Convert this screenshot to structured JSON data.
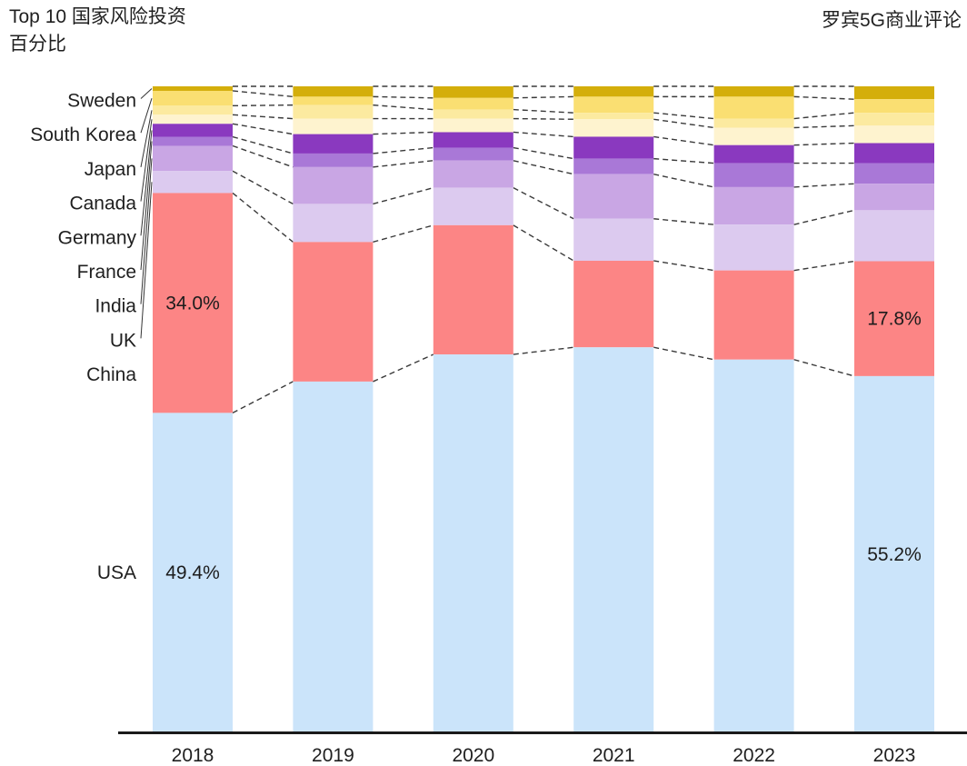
{
  "header": {
    "title_line1": "Top 10 国家风险投资",
    "title_line2": "百分比",
    "source": "罗宾5G商业评论"
  },
  "chart_data": {
    "type": "bar",
    "subtype": "100-percent-stacked-column",
    "title": "Top 10 国家风险投资 百分比",
    "source_label": "罗宾5G商业评论",
    "unit": "%",
    "categories": [
      "2018",
      "2019",
      "2020",
      "2021",
      "2022",
      "2023"
    ],
    "stack_order_top_to_bottom": [
      "Sweden",
      "South Korea",
      "Japan",
      "Canada",
      "Germany",
      "France",
      "India",
      "UK",
      "China",
      "USA"
    ],
    "series": [
      {
        "name": "Sweden",
        "color": "#D4AE0B",
        "values": [
          0.7,
          1.6,
          1.8,
          1.6,
          1.6,
          2.0
        ]
      },
      {
        "name": "South Korea",
        "color": "#FADF72",
        "values": [
          2.3,
          1.3,
          1.8,
          2.5,
          3.4,
          2.1
        ]
      },
      {
        "name": "Japan",
        "color": "#FCEAA0",
        "values": [
          1.4,
          2.1,
          1.4,
          1.0,
          1.4,
          2.0
        ]
      },
      {
        "name": "Canada",
        "color": "#FEF3CF",
        "values": [
          1.4,
          2.4,
          2.1,
          2.7,
          2.7,
          2.7
        ]
      },
      {
        "name": "Germany",
        "color": "#8A39BF",
        "values": [
          2.0,
          3.0,
          2.4,
          3.4,
          2.8,
          3.1
        ]
      },
      {
        "name": "France",
        "color": "#A978D7",
        "values": [
          1.4,
          2.1,
          2.0,
          2.4,
          3.7,
          3.2
        ]
      },
      {
        "name": "India",
        "color": "#C9A6E4",
        "values": [
          3.9,
          5.7,
          4.2,
          6.9,
          5.8,
          4.1
        ]
      },
      {
        "name": "UK",
        "color": "#DCCAEF",
        "values": [
          3.4,
          5.9,
          5.8,
          6.5,
          7.1,
          7.9
        ]
      },
      {
        "name": "China",
        "color": "#FC8585",
        "values": [
          34.0,
          21.6,
          20.0,
          13.4,
          13.8,
          17.8
        ]
      },
      {
        "name": "USA",
        "color": "#CBE4FA",
        "values": [
          49.4,
          54.3,
          58.5,
          59.6,
          57.7,
          55.2
        ]
      }
    ],
    "data_labels": [
      {
        "category": "2018",
        "series": "China",
        "text": "34.0%"
      },
      {
        "category": "2018",
        "series": "USA",
        "text": "49.4%"
      },
      {
        "category": "2023",
        "series": "China",
        "text": "17.8%"
      },
      {
        "category": "2023",
        "series": "USA",
        "text": "55.2%"
      }
    ],
    "legend_position": "left-labels-with-leader-lines",
    "gridlines": false,
    "connectors": "dashed-lines-between-columns",
    "axis": {
      "x_labels": [
        "2018",
        "2019",
        "2020",
        "2021",
        "2022",
        "2023"
      ],
      "y_axis_shown": false
    }
  },
  "style": {
    "label_color": "#1f1f1f",
    "axis_color": "#1a1a1a",
    "connector_color": "#3a3a3a",
    "leader_line_color": "#333333"
  }
}
